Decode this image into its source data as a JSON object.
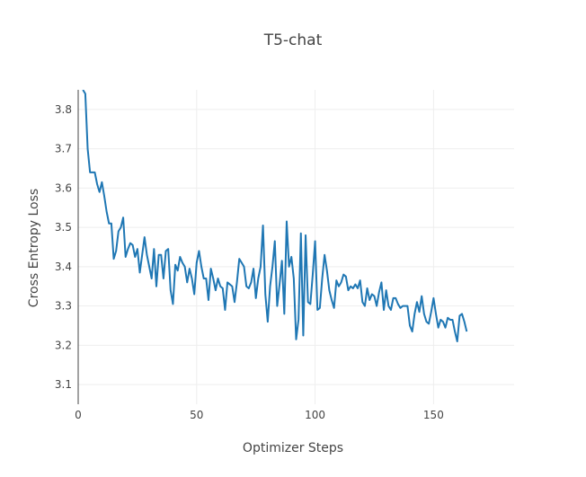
{
  "chart_data": {
    "type": "line",
    "title": "T5-chat",
    "xlabel": "Optimizer Steps",
    "ylabel": "Cross Entropy Loss",
    "xlim": [
      0,
      184
    ],
    "ylim": [
      3.05,
      3.85
    ],
    "xticks": [
      0,
      50,
      100,
      150
    ],
    "yticks": [
      3.1,
      3.2,
      3.3,
      3.4,
      3.5,
      3.6,
      3.7,
      3.8
    ],
    "grid": true,
    "legend": "none",
    "colors": {
      "line": "#1f77b4",
      "grid": "#eeeeee",
      "axis": "#444444"
    },
    "series": [
      {
        "x": [
          2,
          3,
          4,
          5,
          6,
          7,
          8,
          9,
          10,
          11,
          12,
          13,
          14,
          15,
          16,
          17,
          18,
          19,
          20,
          21,
          22,
          23,
          24,
          25,
          26,
          27,
          28,
          29,
          30,
          31,
          32,
          33,
          34,
          35,
          36,
          37,
          38,
          39,
          40,
          41,
          42,
          43,
          44,
          45,
          46,
          47,
          48,
          49,
          50,
          51,
          52,
          53,
          54,
          55,
          56,
          57,
          58,
          59,
          60,
          61,
          62,
          63,
          64,
          65,
          66,
          67,
          68,
          69,
          70,
          71,
          72,
          73,
          74,
          75,
          76,
          77,
          78,
          79,
          80,
          81,
          82,
          83,
          84,
          85,
          86,
          87,
          88,
          89,
          90,
          91,
          92,
          93,
          94,
          95,
          96,
          97,
          98,
          99,
          100,
          101,
          102,
          103,
          104,
          105,
          106,
          107,
          108,
          109,
          110,
          111,
          112,
          113,
          114,
          115,
          116,
          117,
          118,
          119,
          120,
          121,
          122,
          123,
          124,
          125,
          126,
          127,
          128,
          129,
          130,
          131,
          132,
          133,
          134,
          135,
          136,
          137,
          138,
          139,
          140,
          141,
          142,
          143,
          144,
          145,
          146,
          147,
          148,
          149,
          150,
          151,
          152,
          153,
          154,
          155,
          156,
          157,
          158,
          159,
          160,
          161,
          162,
          163,
          164
        ],
        "y": [
          3.85,
          3.84,
          3.7,
          3.64,
          3.64,
          3.64,
          3.61,
          3.59,
          3.615,
          3.58,
          3.54,
          3.51,
          3.51,
          3.42,
          3.44,
          3.49,
          3.5,
          3.525,
          3.425,
          3.445,
          3.46,
          3.455,
          3.425,
          3.445,
          3.385,
          3.43,
          3.475,
          3.43,
          3.4,
          3.37,
          3.445,
          3.35,
          3.43,
          3.43,
          3.37,
          3.44,
          3.445,
          3.34,
          3.305,
          3.405,
          3.39,
          3.425,
          3.41,
          3.4,
          3.36,
          3.395,
          3.37,
          3.33,
          3.41,
          3.44,
          3.4,
          3.37,
          3.37,
          3.315,
          3.395,
          3.37,
          3.34,
          3.37,
          3.35,
          3.345,
          3.29,
          3.36,
          3.355,
          3.35,
          3.31,
          3.36,
          3.42,
          3.41,
          3.4,
          3.35,
          3.345,
          3.36,
          3.395,
          3.32,
          3.37,
          3.4,
          3.505,
          3.33,
          3.26,
          3.35,
          3.4,
          3.465,
          3.3,
          3.355,
          3.415,
          3.28,
          3.515,
          3.4,
          3.425,
          3.37,
          3.215,
          3.265,
          3.485,
          3.225,
          3.48,
          3.31,
          3.305,
          3.38,
          3.465,
          3.29,
          3.295,
          3.37,
          3.43,
          3.39,
          3.34,
          3.315,
          3.295,
          3.365,
          3.35,
          3.36,
          3.38,
          3.375,
          3.34,
          3.35,
          3.345,
          3.355,
          3.345,
          3.365,
          3.31,
          3.3,
          3.345,
          3.315,
          3.33,
          3.325,
          3.3,
          3.335,
          3.36,
          3.29,
          3.34,
          3.3,
          3.29,
          3.32,
          3.32,
          3.305,
          3.295,
          3.3,
          3.3,
          3.3,
          3.25,
          3.235,
          3.28,
          3.31,
          3.285,
          3.325,
          3.28,
          3.26,
          3.255,
          3.285,
          3.32,
          3.28,
          3.245,
          3.265,
          3.26,
          3.245,
          3.27,
          3.265,
          3.265,
          3.235,
          3.21,
          3.275,
          3.28,
          3.26,
          3.235
        ]
      }
    ]
  }
}
